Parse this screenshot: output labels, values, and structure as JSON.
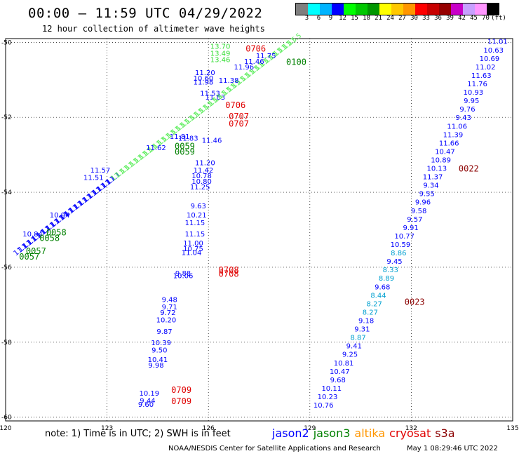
{
  "title": "00:00 — 11:59 UTC 04/29/2022",
  "subtitle": "12 hour collection of altimeter wave heights",
  "colorbar": {
    "unit": "(ft)",
    "colors": [
      "#7f7f7f",
      "#00ffff",
      "#00b4ff",
      "#0000ff",
      "#00ff00",
      "#00c800",
      "#009600",
      "#ffff00",
      "#ffc800",
      "#ff9600",
      "#ff0000",
      "#c80000",
      "#960000",
      "#c800c8",
      "#c8a0ff",
      "#ff96ff",
      "#000000"
    ],
    "labels": [
      "3",
      "6",
      "9",
      "12",
      "15",
      "18",
      "21",
      "24",
      "27",
      "30",
      "33",
      "36",
      "39",
      "42",
      "45",
      "70"
    ]
  },
  "axes": {
    "x_ticks": [
      "120",
      "123",
      "126",
      "129",
      "132",
      "135"
    ],
    "y_ticks": [
      "-50",
      "-52",
      "-54",
      "-56",
      "-58",
      "-60"
    ]
  },
  "note": "note:  1) Time is in UTC;  2) SWH is in feet",
  "legend": [
    {
      "name": "jason2",
      "color": "#0000ff"
    },
    {
      "name": "jason3",
      "color": "#008000"
    },
    {
      "name": "altika",
      "color": "#ff9600"
    },
    {
      "name": "cryosat",
      "color": "#e00000"
    },
    {
      "name": "s3a",
      "color": "#8b0000"
    }
  ],
  "credit": "NOAA/NESDIS Center for Satellite Applications and Research",
  "timestamp": "May  1 08:29:46 UTC 2022",
  "map": {
    "lon_range": [
      120,
      135
    ],
    "lat_range": [
      -60.1,
      -49.9
    ],
    "grid": true
  },
  "tracks": {
    "right_values": [
      "11.01",
      "10.63",
      "10.69",
      "11.02",
      "11.63",
      "11.76",
      "10.93",
      "9.95",
      "9.76",
      "9.43",
      "11.06",
      "11.39",
      "11.66",
      "10.47",
      "10.89",
      "10.13",
      "11.37",
      "9.34",
      "9.55",
      "9.96",
      "9.58",
      "9.57",
      "9.91",
      "10.77",
      "10.59",
      "8.86",
      "9.45",
      "8.33",
      "8.89",
      "9.68",
      "8.44",
      "8.27",
      "8.27",
      "9.18",
      "9.31",
      "8.87",
      "9.41",
      "9.25",
      "10.81",
      "10.47",
      "9.68",
      "10.11",
      "10.23",
      "10.76"
    ],
    "right_times": [
      {
        "text": "0022",
        "color": "#8b0000",
        "lon": 133.4,
        "lat": -53.45
      },
      {
        "text": "0023",
        "color": "#8b0000",
        "lon": 131.8,
        "lat": -57.0
      }
    ],
    "mid_values": [
      "11.20",
      "10.60",
      "11.98",
      "11.83",
      "11.46",
      "11.20",
      "11.42",
      "10.78",
      "10.80",
      "11.25",
      "9.63",
      "10.21",
      "11.15",
      "11.15",
      "11.00",
      "10.75",
      "11.04",
      "9.88",
      "10.06",
      "9.48",
      "9.71",
      "9.72",
      "10.20",
      "9.87",
      "10.39",
      "9.50",
      "10.41",
      "9.98",
      "10.19",
      "9.44",
      "9.60"
    ],
    "mid_times": [
      {
        "text": "0706",
        "color": "#e00000",
        "lon": 127.1,
        "lat": -50.25
      },
      {
        "text": "0706",
        "color": "#e00000",
        "lon": 126.5,
        "lat": -51.75
      },
      {
        "text": "0707",
        "color": "#e00000",
        "lon": 126.6,
        "lat": -52.05
      },
      {
        "text": "0707",
        "color": "#e00000",
        "lon": 126.6,
        "lat": -52.25
      },
      {
        "text": "0708",
        "color": "#e00000",
        "lon": 126.3,
        "lat": -56.15
      },
      {
        "text": "0708",
        "color": "#e00000",
        "lon": 126.3,
        "lat": -56.25
      },
      {
        "text": "0709",
        "color": "#e00000",
        "lon": 124.9,
        "lat": -59.35
      },
      {
        "text": "0709",
        "color": "#e00000",
        "lon": 124.9,
        "lat": -59.65
      }
    ],
    "diag_values": [
      "13.70",
      "13.49",
      "13.46",
      "11.75",
      "11.46",
      "11.96",
      "11.38",
      "11.53",
      "11.83",
      "11.81",
      "11.62",
      "11.57",
      "11.51",
      "10.94",
      "10.84"
    ],
    "diag_times": [
      {
        "text": "0100",
        "color": "#008000",
        "lon": 128.3,
        "lat": -50.6
      },
      {
        "text": "0059",
        "color": "#008000",
        "lon": 125.0,
        "lat": -52.85
      },
      {
        "text": "0059",
        "color": "#008000",
        "lon": 125.0,
        "lat": -53.0
      },
      {
        "text": "0058",
        "color": "#008000",
        "lon": 121.2,
        "lat": -55.15
      },
      {
        "text": "0058",
        "color": "#008000",
        "lon": 121.0,
        "lat": -55.3
      },
      {
        "text": "0057",
        "color": "#008000",
        "lon": 120.6,
        "lat": -55.65
      },
      {
        "text": "0057",
        "color": "#008000",
        "lon": 120.4,
        "lat": -55.8
      }
    ]
  }
}
